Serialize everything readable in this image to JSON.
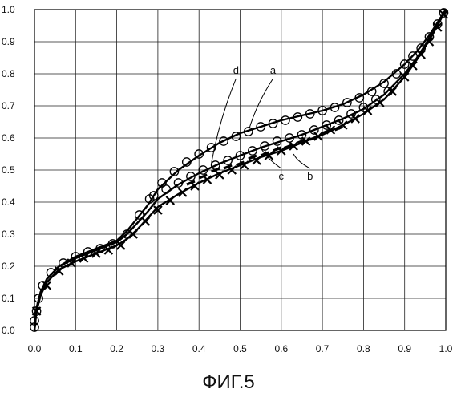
{
  "figure_caption": "ФИГ.5",
  "chart_data": {
    "type": "line",
    "xlim": [
      0.0,
      1.0
    ],
    "ylim": [
      0.0,
      1.0
    ],
    "x_ticks": [
      "0.0",
      "0.1",
      "0.2",
      "0.3",
      "0.4",
      "0.5",
      "0.6",
      "0.7",
      "0.8",
      "0.9",
      "1.0"
    ],
    "y_ticks": [
      "0.0",
      "0.1",
      "0.2",
      "0.3",
      "0.4",
      "0.5",
      "0.6",
      "0.7",
      "0.8",
      "0.9",
      "1.0"
    ],
    "grid": true,
    "series": [
      {
        "name": "a",
        "marker": "circle",
        "curve": [
          [
            0.0,
            0.0
          ],
          [
            0.005,
            0.07
          ],
          [
            0.015,
            0.12
          ],
          [
            0.03,
            0.16
          ],
          [
            0.06,
            0.2
          ],
          [
            0.1,
            0.23
          ],
          [
            0.15,
            0.255
          ],
          [
            0.2,
            0.28
          ],
          [
            0.225,
            0.31
          ],
          [
            0.25,
            0.35
          ],
          [
            0.275,
            0.39
          ],
          [
            0.3,
            0.44
          ],
          [
            0.35,
            0.5
          ],
          [
            0.4,
            0.545
          ],
          [
            0.45,
            0.585
          ],
          [
            0.5,
            0.615
          ],
          [
            0.55,
            0.635
          ],
          [
            0.6,
            0.655
          ],
          [
            0.65,
            0.67
          ],
          [
            0.7,
            0.685
          ],
          [
            0.75,
            0.705
          ],
          [
            0.8,
            0.735
          ],
          [
            0.85,
            0.775
          ],
          [
            0.9,
            0.83
          ],
          [
            0.93,
            0.87
          ],
          [
            0.96,
            0.92
          ],
          [
            0.98,
            0.96
          ],
          [
            1.0,
            1.0
          ]
        ],
        "markers": [
          [
            0.0,
            0.01
          ],
          [
            0.0,
            0.03
          ],
          [
            0.005,
            0.06
          ],
          [
            0.01,
            0.1
          ],
          [
            0.02,
            0.14
          ],
          [
            0.04,
            0.18
          ],
          [
            0.07,
            0.21
          ],
          [
            0.1,
            0.23
          ],
          [
            0.13,
            0.245
          ],
          [
            0.16,
            0.255
          ],
          [
            0.19,
            0.27
          ],
          [
            0.225,
            0.3
          ],
          [
            0.255,
            0.36
          ],
          [
            0.28,
            0.41
          ],
          [
            0.31,
            0.46
          ],
          [
            0.34,
            0.495
          ],
          [
            0.37,
            0.525
          ],
          [
            0.4,
            0.55
          ],
          [
            0.43,
            0.57
          ],
          [
            0.46,
            0.59
          ],
          [
            0.49,
            0.605
          ],
          [
            0.52,
            0.62
          ],
          [
            0.55,
            0.635
          ],
          [
            0.58,
            0.645
          ],
          [
            0.61,
            0.655
          ],
          [
            0.64,
            0.665
          ],
          [
            0.67,
            0.675
          ],
          [
            0.7,
            0.685
          ],
          [
            0.73,
            0.695
          ],
          [
            0.76,
            0.71
          ],
          [
            0.79,
            0.725
          ],
          [
            0.82,
            0.745
          ],
          [
            0.85,
            0.77
          ],
          [
            0.88,
            0.8
          ],
          [
            0.9,
            0.83
          ],
          [
            0.92,
            0.855
          ],
          [
            0.94,
            0.88
          ],
          [
            0.96,
            0.915
          ],
          [
            0.98,
            0.955
          ],
          [
            0.995,
            0.99
          ]
        ]
      },
      {
        "name": "d",
        "marker": "circle",
        "curve": [
          [
            0.0,
            0.0
          ],
          [
            0.005,
            0.07
          ],
          [
            0.015,
            0.12
          ],
          [
            0.03,
            0.16
          ],
          [
            0.06,
            0.2
          ],
          [
            0.1,
            0.225
          ],
          [
            0.15,
            0.25
          ],
          [
            0.2,
            0.275
          ],
          [
            0.225,
            0.3
          ],
          [
            0.25,
            0.335
          ],
          [
            0.275,
            0.37
          ],
          [
            0.3,
            0.41
          ],
          [
            0.35,
            0.455
          ],
          [
            0.4,
            0.49
          ],
          [
            0.45,
            0.52
          ],
          [
            0.5,
            0.545
          ],
          [
            0.55,
            0.57
          ],
          [
            0.6,
            0.59
          ],
          [
            0.65,
            0.61
          ],
          [
            0.7,
            0.635
          ],
          [
            0.75,
            0.66
          ],
          [
            0.8,
            0.69
          ],
          [
            0.85,
            0.735
          ],
          [
            0.9,
            0.8
          ],
          [
            0.93,
            0.85
          ],
          [
            0.96,
            0.91
          ],
          [
            0.98,
            0.955
          ],
          [
            1.0,
            1.0
          ]
        ],
        "markers": [
          [
            0.29,
            0.42
          ],
          [
            0.32,
            0.44
          ],
          [
            0.35,
            0.46
          ],
          [
            0.38,
            0.48
          ],
          [
            0.41,
            0.5
          ],
          [
            0.44,
            0.515
          ],
          [
            0.47,
            0.53
          ],
          [
            0.5,
            0.545
          ],
          [
            0.53,
            0.56
          ],
          [
            0.56,
            0.575
          ],
          [
            0.59,
            0.59
          ],
          [
            0.62,
            0.6
          ],
          [
            0.65,
            0.61
          ],
          [
            0.68,
            0.625
          ],
          [
            0.71,
            0.64
          ],
          [
            0.74,
            0.655
          ],
          [
            0.77,
            0.675
          ],
          [
            0.8,
            0.695
          ],
          [
            0.83,
            0.72
          ],
          [
            0.86,
            0.745
          ]
        ]
      },
      {
        "name": "c",
        "marker": "dash",
        "curve": [],
        "markers": [
          [
            0.38,
            0.46
          ],
          [
            0.41,
            0.48
          ],
          [
            0.44,
            0.5
          ],
          [
            0.47,
            0.51
          ],
          [
            0.5,
            0.52
          ],
          [
            0.53,
            0.54
          ],
          [
            0.56,
            0.55
          ],
          [
            0.59,
            0.565
          ],
          [
            0.62,
            0.575
          ],
          [
            0.65,
            0.59
          ],
          [
            0.68,
            0.6
          ],
          [
            0.71,
            0.62
          ],
          [
            0.74,
            0.63
          ]
        ]
      },
      {
        "name": "b",
        "marker": "x",
        "curve": [
          [
            0.0,
            0.0
          ],
          [
            0.005,
            0.06
          ],
          [
            0.015,
            0.11
          ],
          [
            0.03,
            0.15
          ],
          [
            0.06,
            0.19
          ],
          [
            0.1,
            0.215
          ],
          [
            0.15,
            0.24
          ],
          [
            0.2,
            0.265
          ],
          [
            0.225,
            0.285
          ],
          [
            0.25,
            0.315
          ],
          [
            0.275,
            0.35
          ],
          [
            0.3,
            0.385
          ],
          [
            0.35,
            0.425
          ],
          [
            0.4,
            0.46
          ],
          [
            0.45,
            0.49
          ],
          [
            0.5,
            0.515
          ],
          [
            0.55,
            0.54
          ],
          [
            0.6,
            0.56
          ],
          [
            0.65,
            0.585
          ],
          [
            0.7,
            0.61
          ],
          [
            0.75,
            0.64
          ],
          [
            0.8,
            0.675
          ],
          [
            0.85,
            0.72
          ],
          [
            0.9,
            0.79
          ],
          [
            0.93,
            0.845
          ],
          [
            0.96,
            0.905
          ],
          [
            0.98,
            0.95
          ],
          [
            1.0,
            1.0
          ]
        ],
        "markers": [
          [
            0.005,
            0.06
          ],
          [
            0.03,
            0.14
          ],
          [
            0.06,
            0.185
          ],
          [
            0.09,
            0.21
          ],
          [
            0.12,
            0.225
          ],
          [
            0.15,
            0.24
          ],
          [
            0.18,
            0.25
          ],
          [
            0.21,
            0.265
          ],
          [
            0.24,
            0.3
          ],
          [
            0.27,
            0.34
          ],
          [
            0.3,
            0.375
          ],
          [
            0.33,
            0.405
          ],
          [
            0.36,
            0.43
          ],
          [
            0.39,
            0.45
          ],
          [
            0.42,
            0.47
          ],
          [
            0.45,
            0.485
          ],
          [
            0.48,
            0.5
          ],
          [
            0.51,
            0.515
          ],
          [
            0.54,
            0.53
          ],
          [
            0.57,
            0.545
          ],
          [
            0.6,
            0.56
          ],
          [
            0.63,
            0.575
          ],
          [
            0.66,
            0.59
          ],
          [
            0.69,
            0.605
          ],
          [
            0.72,
            0.625
          ],
          [
            0.75,
            0.64
          ],
          [
            0.78,
            0.66
          ],
          [
            0.81,
            0.685
          ],
          [
            0.84,
            0.71
          ],
          [
            0.87,
            0.745
          ],
          [
            0.9,
            0.79
          ],
          [
            0.92,
            0.825
          ],
          [
            0.94,
            0.86
          ],
          [
            0.96,
            0.9
          ],
          [
            0.98,
            0.945
          ],
          [
            0.995,
            0.985
          ]
        ]
      }
    ],
    "annotations": [
      {
        "text": "a",
        "at": [
          0.58,
          0.8
        ],
        "points_to": [
          0.52,
          0.62
        ]
      },
      {
        "text": "d",
        "at": [
          0.49,
          0.8
        ],
        "points_to": [
          0.43,
          0.52
        ]
      },
      {
        "text": "c",
        "at": [
          0.6,
          0.47
        ],
        "points_to": [
          0.55,
          0.57
        ]
      },
      {
        "text": "b",
        "at": [
          0.67,
          0.47
        ],
        "points_to": [
          0.63,
          0.55
        ]
      }
    ]
  }
}
